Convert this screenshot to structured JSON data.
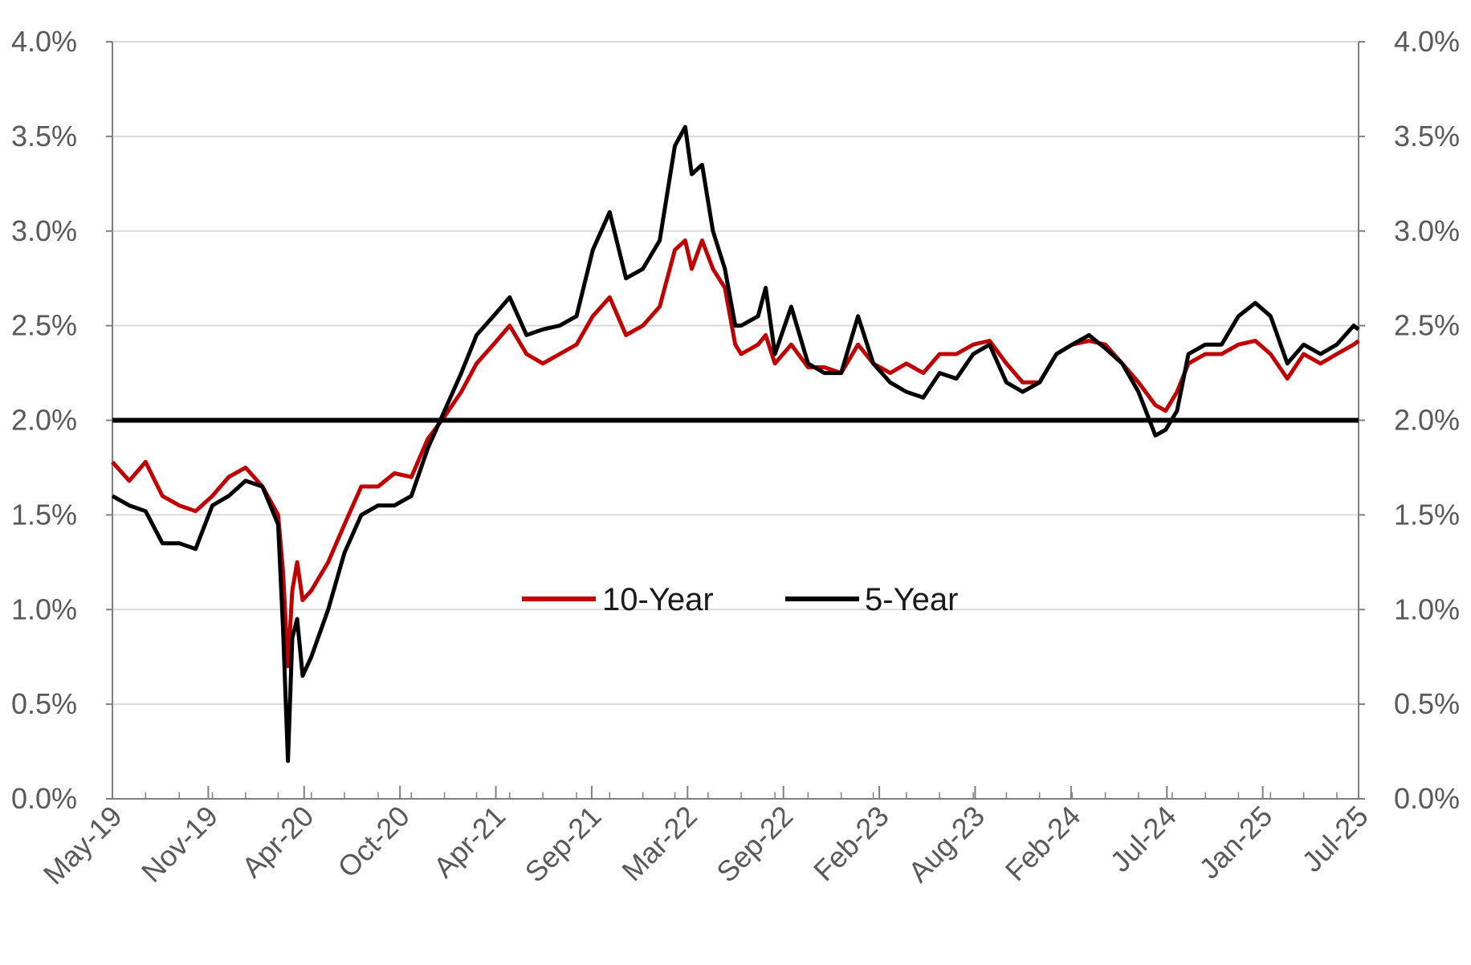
{
  "chart_data": {
    "type": "line",
    "title": "",
    "xlabel": "",
    "ylabel": "",
    "x_tick_labels": [
      "May-19",
      "Nov-19",
      "Apr-20",
      "Oct-20",
      "Apr-21",
      "Sep-21",
      "Mar-22",
      "Sep-22",
      "Feb-23",
      "Aug-23",
      "Feb-24",
      "Jul-24",
      "Jan-25",
      "Jul-25"
    ],
    "y_tick_labels": [
      "0.0%",
      "0.5%",
      "1.0%",
      "1.5%",
      "2.0%",
      "2.5%",
      "3.0%",
      "3.5%",
      "4.0%"
    ],
    "ylim": [
      0,
      4.0
    ],
    "xlim": [
      "2019-05-01",
      "2025-08-10"
    ],
    "grid": "horizontal",
    "secondary_y_axis": "mirrors left axis (0.0%–4.0%)",
    "legend": {
      "placement": "center",
      "entries": [
        "10-Year",
        "5-Year"
      ]
    },
    "reference_line": {
      "y": 2.0,
      "color": "#000000"
    },
    "colors": {
      "10-Year": "#c00000",
      "5-Year": "#000000",
      "grid": "#d9d9d9",
      "axis": "#7f7f7f",
      "tick_text": "#595959"
    },
    "series": [
      {
        "name": "10-Year",
        "color": "#c00000",
        "points": [
          [
            "2019-05-01",
            1.78
          ],
          [
            "2019-06-01",
            1.68
          ],
          [
            "2019-07-01",
            1.78
          ],
          [
            "2019-08-01",
            1.6
          ],
          [
            "2019-09-01",
            1.55
          ],
          [
            "2019-10-01",
            1.52
          ],
          [
            "2019-11-01",
            1.6
          ],
          [
            "2019-12-01",
            1.7
          ],
          [
            "2020-01-01",
            1.75
          ],
          [
            "2020-02-01",
            1.65
          ],
          [
            "2020-03-01",
            1.5
          ],
          [
            "2020-03-10",
            1.2
          ],
          [
            "2020-03-19",
            0.7
          ],
          [
            "2020-03-27",
            1.1
          ],
          [
            "2020-04-05",
            1.25
          ],
          [
            "2020-04-15",
            1.05
          ],
          [
            "2020-05-01",
            1.1
          ],
          [
            "2020-06-01",
            1.25
          ],
          [
            "2020-07-01",
            1.45
          ],
          [
            "2020-08-01",
            1.65
          ],
          [
            "2020-09-01",
            1.65
          ],
          [
            "2020-10-01",
            1.72
          ],
          [
            "2020-11-01",
            1.7
          ],
          [
            "2020-12-01",
            1.9
          ],
          [
            "2021-01-01",
            2.02
          ],
          [
            "2021-02-01",
            2.15
          ],
          [
            "2021-03-01",
            2.3
          ],
          [
            "2021-04-01",
            2.4
          ],
          [
            "2021-05-01",
            2.5
          ],
          [
            "2021-06-01",
            2.35
          ],
          [
            "2021-07-01",
            2.3
          ],
          [
            "2021-08-01",
            2.35
          ],
          [
            "2021-09-01",
            2.4
          ],
          [
            "2021-10-01",
            2.55
          ],
          [
            "2021-11-01",
            2.65
          ],
          [
            "2021-12-01",
            2.45
          ],
          [
            "2022-01-01",
            2.5
          ],
          [
            "2022-02-01",
            2.6
          ],
          [
            "2022-03-01",
            2.9
          ],
          [
            "2022-03-20",
            2.95
          ],
          [
            "2022-04-01",
            2.8
          ],
          [
            "2022-04-20",
            2.95
          ],
          [
            "2022-05-10",
            2.8
          ],
          [
            "2022-06-01",
            2.7
          ],
          [
            "2022-06-20",
            2.4
          ],
          [
            "2022-07-01",
            2.35
          ],
          [
            "2022-08-01",
            2.4
          ],
          [
            "2022-08-15",
            2.45
          ],
          [
            "2022-09-01",
            2.3
          ],
          [
            "2022-10-01",
            2.4
          ],
          [
            "2022-11-01",
            2.28
          ],
          [
            "2022-12-01",
            2.28
          ],
          [
            "2023-01-01",
            2.25
          ],
          [
            "2023-02-01",
            2.4
          ],
          [
            "2023-03-01",
            2.3
          ],
          [
            "2023-04-01",
            2.25
          ],
          [
            "2023-05-01",
            2.3
          ],
          [
            "2023-06-01",
            2.25
          ],
          [
            "2023-07-01",
            2.35
          ],
          [
            "2023-08-01",
            2.35
          ],
          [
            "2023-09-01",
            2.4
          ],
          [
            "2023-10-01",
            2.42
          ],
          [
            "2023-11-01",
            2.3
          ],
          [
            "2023-12-01",
            2.2
          ],
          [
            "2024-01-01",
            2.2
          ],
          [
            "2024-02-01",
            2.35
          ],
          [
            "2024-03-01",
            2.4
          ],
          [
            "2024-04-01",
            2.42
          ],
          [
            "2024-05-01",
            2.4
          ],
          [
            "2024-06-01",
            2.3
          ],
          [
            "2024-07-01",
            2.2
          ],
          [
            "2024-08-01",
            2.08
          ],
          [
            "2024-08-20",
            2.05
          ],
          [
            "2024-09-10",
            2.15
          ],
          [
            "2024-10-01",
            2.3
          ],
          [
            "2024-11-01",
            2.35
          ],
          [
            "2024-12-01",
            2.35
          ],
          [
            "2025-01-01",
            2.4
          ],
          [
            "2025-02-01",
            2.42
          ],
          [
            "2025-03-01",
            2.35
          ],
          [
            "2025-04-01",
            2.22
          ],
          [
            "2025-05-01",
            2.35
          ],
          [
            "2025-06-01",
            2.3
          ],
          [
            "2025-07-01",
            2.35
          ],
          [
            "2025-08-01",
            2.4
          ],
          [
            "2025-08-10",
            2.42
          ]
        ]
      },
      {
        "name": "5-Year",
        "color": "#000000",
        "points": [
          [
            "2019-05-01",
            1.6
          ],
          [
            "2019-06-01",
            1.55
          ],
          [
            "2019-07-01",
            1.52
          ],
          [
            "2019-08-01",
            1.35
          ],
          [
            "2019-09-01",
            1.35
          ],
          [
            "2019-10-01",
            1.32
          ],
          [
            "2019-11-01",
            1.55
          ],
          [
            "2019-12-01",
            1.6
          ],
          [
            "2020-01-01",
            1.68
          ],
          [
            "2020-02-01",
            1.65
          ],
          [
            "2020-03-01",
            1.45
          ],
          [
            "2020-03-10",
            0.9
          ],
          [
            "2020-03-19",
            0.2
          ],
          [
            "2020-03-27",
            0.85
          ],
          [
            "2020-04-05",
            0.95
          ],
          [
            "2020-04-15",
            0.65
          ],
          [
            "2020-05-01",
            0.75
          ],
          [
            "2020-06-01",
            1.0
          ],
          [
            "2020-07-01",
            1.3
          ],
          [
            "2020-08-01",
            1.5
          ],
          [
            "2020-09-01",
            1.55
          ],
          [
            "2020-10-01",
            1.55
          ],
          [
            "2020-11-01",
            1.6
          ],
          [
            "2020-12-01",
            1.85
          ],
          [
            "2021-01-01",
            2.05
          ],
          [
            "2021-02-01",
            2.25
          ],
          [
            "2021-03-01",
            2.45
          ],
          [
            "2021-04-01",
            2.55
          ],
          [
            "2021-05-01",
            2.65
          ],
          [
            "2021-06-01",
            2.45
          ],
          [
            "2021-07-01",
            2.48
          ],
          [
            "2021-08-01",
            2.5
          ],
          [
            "2021-09-01",
            2.55
          ],
          [
            "2021-10-01",
            2.9
          ],
          [
            "2021-11-01",
            3.1
          ],
          [
            "2021-12-01",
            2.75
          ],
          [
            "2022-01-01",
            2.8
          ],
          [
            "2022-02-01",
            2.95
          ],
          [
            "2022-03-01",
            3.45
          ],
          [
            "2022-03-20",
            3.55
          ],
          [
            "2022-04-01",
            3.3
          ],
          [
            "2022-04-20",
            3.35
          ],
          [
            "2022-05-10",
            3.0
          ],
          [
            "2022-06-01",
            2.8
          ],
          [
            "2022-06-20",
            2.5
          ],
          [
            "2022-07-01",
            2.5
          ],
          [
            "2022-08-01",
            2.55
          ],
          [
            "2022-08-15",
            2.7
          ],
          [
            "2022-09-01",
            2.35
          ],
          [
            "2022-10-01",
            2.6
          ],
          [
            "2022-11-01",
            2.3
          ],
          [
            "2022-12-01",
            2.25
          ],
          [
            "2023-01-01",
            2.25
          ],
          [
            "2023-02-01",
            2.55
          ],
          [
            "2023-03-01",
            2.3
          ],
          [
            "2023-04-01",
            2.2
          ],
          [
            "2023-05-01",
            2.15
          ],
          [
            "2023-06-01",
            2.12
          ],
          [
            "2023-07-01",
            2.25
          ],
          [
            "2023-08-01",
            2.22
          ],
          [
            "2023-09-01",
            2.35
          ],
          [
            "2023-10-01",
            2.4
          ],
          [
            "2023-11-01",
            2.2
          ],
          [
            "2023-12-01",
            2.15
          ],
          [
            "2024-01-01",
            2.2
          ],
          [
            "2024-02-01",
            2.35
          ],
          [
            "2024-03-01",
            2.4
          ],
          [
            "2024-04-01",
            2.45
          ],
          [
            "2024-05-01",
            2.38
          ],
          [
            "2024-06-01",
            2.3
          ],
          [
            "2024-07-01",
            2.15
          ],
          [
            "2024-08-01",
            1.92
          ],
          [
            "2024-08-20",
            1.95
          ],
          [
            "2024-09-10",
            2.05
          ],
          [
            "2024-10-01",
            2.35
          ],
          [
            "2024-11-01",
            2.4
          ],
          [
            "2024-12-01",
            2.4
          ],
          [
            "2025-01-01",
            2.55
          ],
          [
            "2025-02-01",
            2.62
          ],
          [
            "2025-03-01",
            2.55
          ],
          [
            "2025-04-01",
            2.3
          ],
          [
            "2025-05-01",
            2.4
          ],
          [
            "2025-06-01",
            2.35
          ],
          [
            "2025-07-01",
            2.4
          ],
          [
            "2025-08-01",
            2.5
          ],
          [
            "2025-08-10",
            2.48
          ]
        ]
      }
    ]
  }
}
